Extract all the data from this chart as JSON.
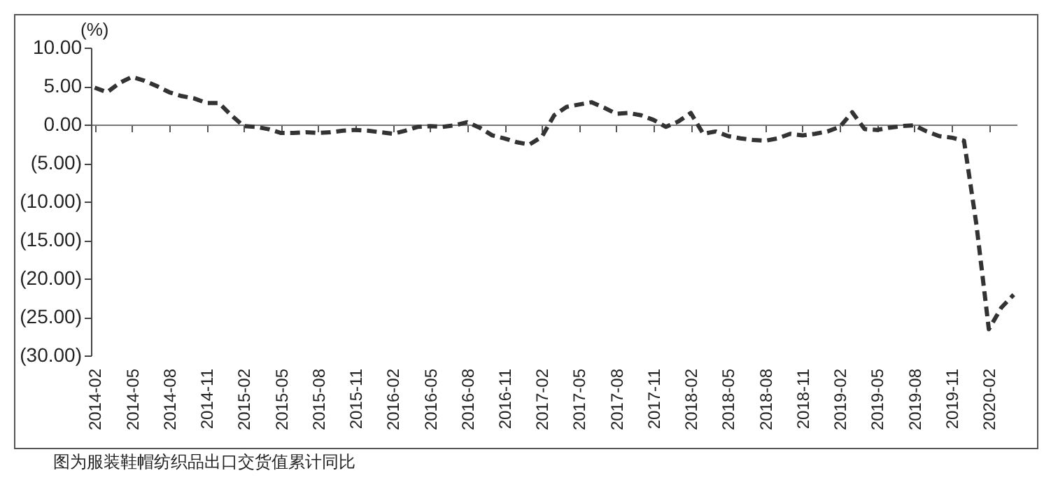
{
  "chart_data": {
    "type": "line",
    "ylabel": "(%)",
    "categories": [
      "2014-02",
      null,
      null,
      "2014-05",
      null,
      null,
      "2014-08",
      null,
      null,
      "2014-11",
      null,
      null,
      "2015-02",
      null,
      null,
      "2015-05",
      null,
      null,
      "2015-08",
      null,
      null,
      "2015-11",
      null,
      null,
      "2016-02",
      null,
      null,
      "2016-05",
      null,
      null,
      "2016-08",
      null,
      null,
      "2016-11",
      null,
      null,
      "2017-02",
      null,
      null,
      "2017-05",
      null,
      null,
      "2017-08",
      null,
      null,
      "2017-11",
      null,
      null,
      "2018-02",
      null,
      null,
      "2018-05",
      null,
      null,
      "2018-08",
      null,
      null,
      "2018-11",
      null,
      null,
      "2019-02",
      null,
      null,
      "2019-05",
      null,
      null,
      "2019-08",
      null,
      null,
      "2019-11",
      null,
      null,
      "2020-02",
      null,
      null
    ],
    "series": [
      {
        "color": "#333333",
        "values": [
          4.8,
          4.2,
          5.4,
          6.2,
          5.7,
          5.0,
          4.2,
          3.7,
          3.4,
          2.8,
          2.8,
          1.2,
          -0.2,
          -0.3,
          -0.6,
          -1.1,
          -1.1,
          -1.0,
          -1.1,
          -1.0,
          -0.8,
          -0.7,
          -0.8,
          -1.0,
          -1.2,
          -0.8,
          -0.3,
          -0.2,
          -0.3,
          -0.1,
          0.3,
          -0.4,
          -1.4,
          -1.8,
          -2.3,
          -2.6,
          -1.6,
          1.2,
          2.3,
          2.6,
          2.9,
          2.2,
          1.4,
          1.5,
          1.2,
          0.6,
          -0.3,
          0.4,
          1.5,
          -1.2,
          -0.9,
          -1.5,
          -1.8,
          -2.0,
          -2.1,
          -1.8,
          -1.2,
          -1.4,
          -1.2,
          -0.9,
          -0.3,
          1.6,
          -0.6,
          -0.7,
          -0.4,
          -0.2,
          -0.1,
          -0.9,
          -1.5,
          -1.7,
          -2.1,
          -13,
          -26.6,
          -23.8,
          -22.1
        ]
      }
    ],
    "ylim": [
      -30,
      10
    ],
    "yticks": [
      {
        "value": 10,
        "label": "10.00"
      },
      {
        "value": 5,
        "label": "5.00"
      },
      {
        "value": 0,
        "label": "0.00"
      },
      {
        "value": -5,
        "label": "(5.00)"
      },
      {
        "value": -10,
        "label": "(10.00)"
      },
      {
        "value": -15,
        "label": "(15.00)"
      },
      {
        "value": -20,
        "label": "(20.00)"
      },
      {
        "value": -25,
        "label": "(25.00)"
      },
      {
        "value": -30,
        "label": "(30.00)"
      }
    ],
    "marker": "none",
    "line_style": "dashed",
    "annotations": [
      "图为服装鞋帽纺织品出口交货值累计同比"
    ]
  }
}
